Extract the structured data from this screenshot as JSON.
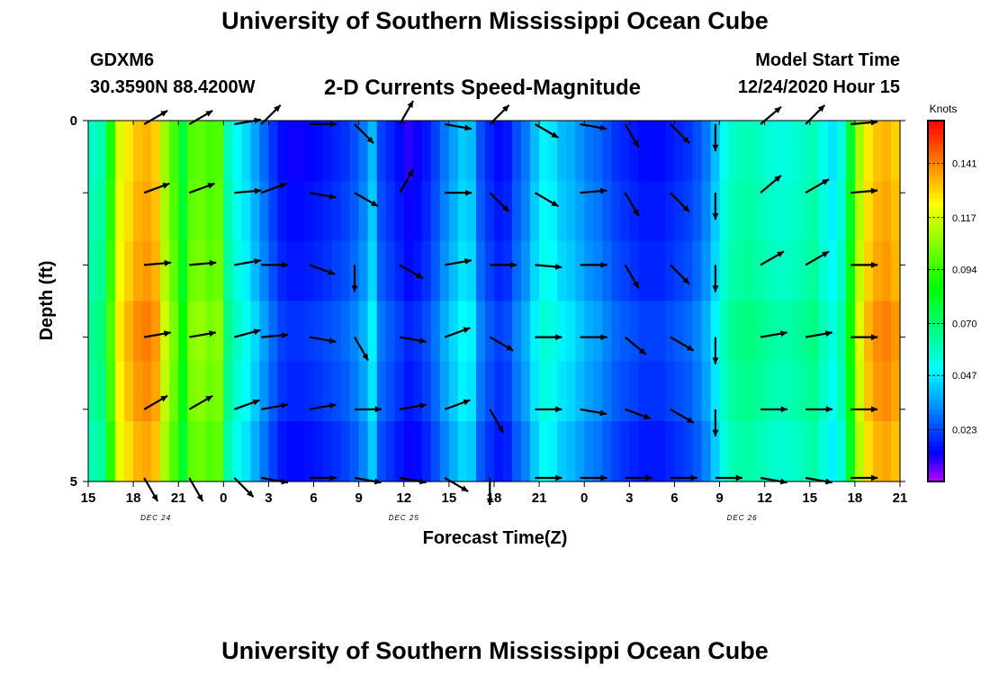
{
  "header": {
    "title": "University of Southern Mississippi Ocean Cube",
    "station": "GDXM6",
    "coords": "30.3590N 88.4200W",
    "model_label": "Model Start Time",
    "model_time": "12/24/2020 Hour 15",
    "footer_title": "University of Southern Mississippi Ocean Cube"
  },
  "chart_data": {
    "type": "heatmap",
    "title": "2-D Currents Speed-Magnitude",
    "xlabel": "Forecast Time(Z)",
    "ylabel": "Depth (ft)",
    "x_hours": [
      0,
      54
    ],
    "ylim": [
      0,
      5
    ],
    "x_ticks": [
      {
        "hour": 0,
        "label": "15"
      },
      {
        "hour": 3,
        "label": "18"
      },
      {
        "hour": 6,
        "label": "21"
      },
      {
        "hour": 9,
        "label": "0"
      },
      {
        "hour": 12,
        "label": "3"
      },
      {
        "hour": 15,
        "label": "6"
      },
      {
        "hour": 18,
        "label": "9"
      },
      {
        "hour": 21,
        "label": "12"
      },
      {
        "hour": 24,
        "label": "15"
      },
      {
        "hour": 27,
        "label": "18"
      },
      {
        "hour": 30,
        "label": "21"
      },
      {
        "hour": 33,
        "label": "0"
      },
      {
        "hour": 36,
        "label": "3"
      },
      {
        "hour": 39,
        "label": "6"
      },
      {
        "hour": 42,
        "label": "9"
      },
      {
        "hour": 45,
        "label": "12"
      },
      {
        "hour": 48,
        "label": "15"
      },
      {
        "hour": 51,
        "label": "18"
      },
      {
        "hour": 54,
        "label": "21"
      }
    ],
    "y_ticks": [
      {
        "value": 0,
        "label": "0"
      },
      {
        "value": 5,
        "label": "5"
      }
    ],
    "date_labels": [
      {
        "hour": 4.5,
        "label": "DEC 24"
      },
      {
        "hour": 21,
        "label": "DEC 25"
      },
      {
        "hour": 43.5,
        "label": "DEC 26"
      }
    ],
    "colorbar": {
      "unit": "Knots",
      "min": 0.0,
      "max": 0.16,
      "ticks": [
        "0.023",
        "0.047",
        "0.070",
        "0.094",
        "0.117",
        "0.141"
      ],
      "tick_values": [
        0.023,
        0.047,
        0.07,
        0.094,
        0.117,
        0.141
      ]
    },
    "column_hours": [
      0.3,
      0.9,
      1.5,
      2.1,
      2.7,
      3.3,
      3.9,
      4.5,
      5.1,
      5.7,
      6.3,
      6.9,
      7.5,
      8.1,
      8.7,
      9.3,
      9.9,
      10.5,
      11.1,
      11.7,
      12.3,
      12.9,
      13.5,
      14.1,
      14.7,
      15.3,
      15.9,
      16.5,
      17.1,
      17.7,
      18.3,
      18.9,
      19.5,
      20.1,
      20.7,
      21.3,
      21.9,
      22.5,
      23.1,
      23.7,
      24.3,
      24.9,
      25.5,
      26.1,
      26.7,
      27.3,
      27.9,
      28.5,
      29.1,
      29.7,
      30.3,
      30.9,
      31.5,
      32.1,
      32.7,
      33.3,
      33.9,
      34.5,
      35.1,
      35.7,
      36.3,
      36.9,
      37.5,
      38.1,
      38.7,
      39.3,
      39.9,
      40.5,
      41.1,
      41.7,
      42.3,
      42.9,
      43.5,
      44.1,
      44.7,
      45.3,
      45.9,
      46.5,
      47.1,
      47.7,
      48.3,
      48.9,
      49.5,
      50.1,
      50.7,
      51.3,
      51.9,
      52.5,
      53.1,
      53.7
    ],
    "surface_speed_by_column": [
      0.058,
      0.062,
      0.09,
      0.118,
      0.126,
      0.132,
      0.134,
      0.13,
      0.108,
      0.096,
      0.078,
      0.098,
      0.1,
      0.096,
      0.098,
      0.06,
      0.05,
      0.044,
      0.036,
      0.028,
      0.02,
      0.014,
      0.012,
      0.012,
      0.013,
      0.014,
      0.016,
      0.018,
      0.02,
      0.024,
      0.03,
      0.04,
      0.022,
      0.018,
      0.014,
      0.01,
      0.012,
      0.016,
      0.022,
      0.03,
      0.036,
      0.042,
      0.04,
      0.024,
      0.018,
      0.014,
      0.016,
      0.024,
      0.03,
      0.04,
      0.048,
      0.046,
      0.04,
      0.038,
      0.034,
      0.03,
      0.028,
      0.024,
      0.02,
      0.018,
      0.016,
      0.014,
      0.014,
      0.014,
      0.016,
      0.018,
      0.02,
      0.024,
      0.03,
      0.04,
      0.052,
      0.058,
      0.06,
      0.06,
      0.058,
      0.056,
      0.054,
      0.054,
      0.056,
      0.058,
      0.06,
      0.052,
      0.046,
      0.054,
      0.08,
      0.11,
      0.126,
      0.132,
      0.134,
      0.13
    ],
    "depth_offset_by_row": [
      0.0,
      0.002,
      0.004,
      0.008,
      0.006,
      0.002
    ],
    "depth_rows": [
      0.5,
      1.5,
      2.5,
      3.5,
      4.5
    ],
    "arrows": {
      "hours": [
        4.2,
        7.2,
        10.2,
        12.0,
        15.2,
        18.2,
        21.2,
        24.2,
        27.2,
        30.2,
        33.2,
        36.2,
        39.2,
        42.2,
        45.2,
        48.2,
        51.2
      ],
      "directions_deg": [
        [
          -30,
          -30,
          -10,
          -45,
          0,
          45,
          -60,
          10,
          -45,
          30,
          10,
          60,
          45,
          90,
          -40,
          -45,
          -5
        ],
        [
          -20,
          -20,
          -5,
          -20,
          10,
          30,
          -60,
          0,
          45,
          30,
          -5,
          60,
          45,
          90,
          -40,
          -30,
          -5
        ],
        [
          -5,
          -5,
          -10,
          0,
          20,
          90,
          30,
          -10,
          0,
          5,
          0,
          60,
          45,
          90,
          -30,
          -30,
          0
        ],
        [
          -10,
          -10,
          -15,
          -5,
          10,
          60,
          10,
          -20,
          30,
          0,
          0,
          40,
          30,
          90,
          -10,
          -10,
          0
        ],
        [
          -30,
          -30,
          -20,
          -10,
          -10,
          0,
          -10,
          -20,
          60,
          0,
          10,
          20,
          30,
          90,
          0,
          0,
          0
        ],
        [
          60,
          60,
          45,
          10,
          0,
          10,
          10,
          30,
          90,
          0,
          0,
          0,
          0,
          0,
          10,
          10,
          0
        ]
      ]
    }
  }
}
